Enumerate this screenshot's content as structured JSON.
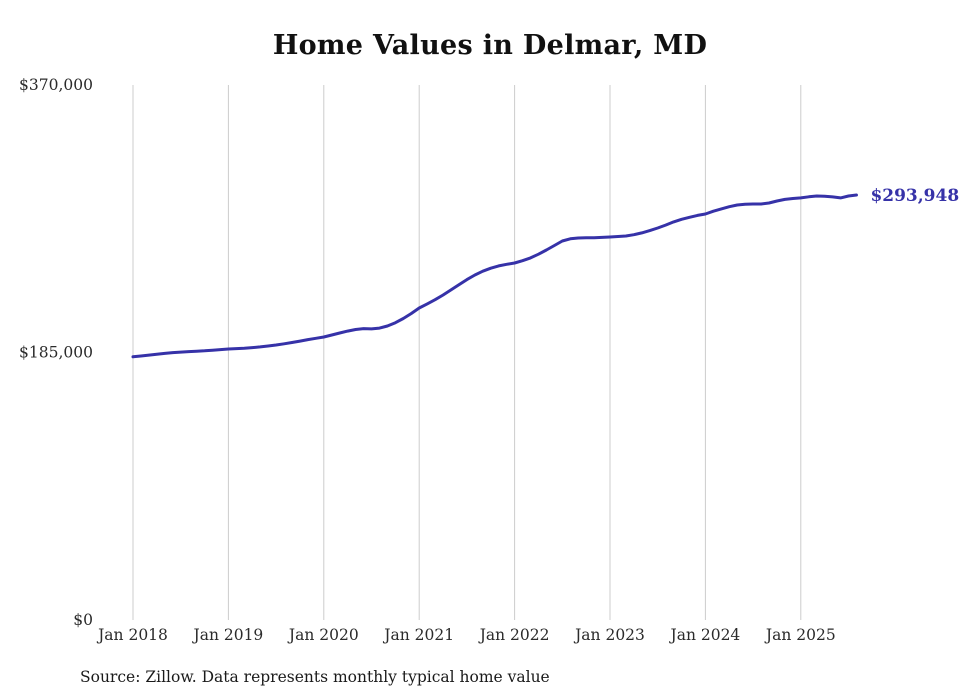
{
  "page": {
    "title": "Home Values in Delmar, MD",
    "source_note": "Source: Zillow. Data represents monthly typical home value"
  },
  "chart_data": {
    "type": "line",
    "title": "Home Values in Delmar, MD",
    "series_name": "Monthly typical home value",
    "frequency": "monthly",
    "start_month": "Jan 2018",
    "end_month": "Aug 2025",
    "x_tick_labels": [
      "Jan 2018",
      "Jan 2019",
      "Jan 2020",
      "Jan 2021",
      "Jan 2022",
      "Jan 2023",
      "Jan 2024",
      "Jan 2025"
    ],
    "y_ticks": [
      {
        "value": 0,
        "label": "$0"
      },
      {
        "value": 185000,
        "label": "$185,000"
      },
      {
        "value": 370000,
        "label": "$370,000"
      }
    ],
    "ylim": [
      0,
      370000
    ],
    "grid": "vertical-only",
    "legend": "none",
    "end_value": 293948,
    "end_value_label": "$293,948",
    "line_color": "#3632a8",
    "grid_color": "#cccccc",
    "axis_text_color": "#2b2b2b",
    "values": [
      182000,
      182600,
      183200,
      183800,
      184400,
      184900,
      185300,
      185600,
      185900,
      186200,
      186600,
      187000,
      187400,
      187700,
      188000,
      188400,
      188900,
      189500,
      190200,
      191000,
      191900,
      192900,
      193900,
      194800,
      195700,
      197100,
      198500,
      199800,
      200900,
      201500,
      201300,
      201900,
      203300,
      205600,
      208500,
      212000,
      215800,
      218600,
      221500,
      224800,
      228300,
      231900,
      235400,
      238600,
      241200,
      243300,
      244900,
      246000,
      246900,
      248500,
      250400,
      253000,
      255900,
      259000,
      262100,
      263600,
      264200,
      264400,
      264300,
      264600,
      264900,
      265200,
      265600,
      266500,
      267700,
      269300,
      271100,
      273100,
      275300,
      277100,
      278500,
      279800,
      280800,
      282700,
      284300,
      285800,
      287000,
      287500,
      287700,
      287700,
      288400,
      289800,
      290900,
      291500,
      291900,
      292700,
      293200,
      293000,
      292600,
      291900,
      293200,
      293948
    ]
  }
}
